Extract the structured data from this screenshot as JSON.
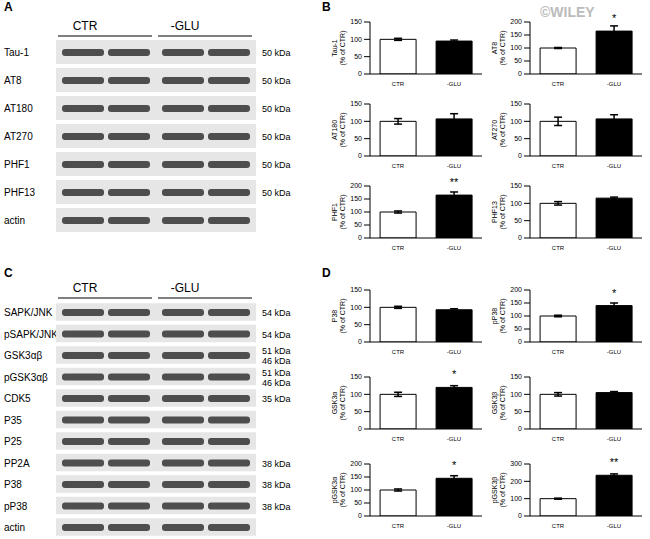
{
  "panel_labels": [
    "A",
    "B",
    "C",
    "D"
  ],
  "watermark": "©WILEY",
  "blots": [
    {
      "groups": [
        "CTR",
        "-GLU"
      ],
      "rows": [
        {
          "label": "Tau-1",
          "kda": [
            "50 kDa"
          ]
        },
        {
          "label": "AT8",
          "kda": [
            "50 kDa"
          ]
        },
        {
          "label": "AT180",
          "kda": [
            "50 kDa"
          ]
        },
        {
          "label": "AT270",
          "kda": [
            "50 kDa"
          ]
        },
        {
          "label": "PHF1",
          "kda": [
            "50 kDa"
          ]
        },
        {
          "label": "PHF13",
          "kda": [
            "50 kDa"
          ]
        },
        {
          "label": "actin",
          "kda": []
        }
      ]
    },
    {
      "groups": [
        "CTR",
        "-GLU"
      ],
      "rows": [
        {
          "label": "SAPK/JNK",
          "kda": [
            "54 kDa"
          ]
        },
        {
          "label": "pSAPK/JNK",
          "kda": [
            "54 kDa"
          ]
        },
        {
          "label": "GSK3αβ",
          "kda": [
            "51 kDa",
            "46 kDa"
          ]
        },
        {
          "label": "pGSK3αβ",
          "kda": [
            "51 kDa",
            "46 kDa"
          ]
        },
        {
          "label": "CDK5",
          "kda": [
            "35 kDa"
          ]
        },
        {
          "label": "P35",
          "kda": []
        },
        {
          "label": "P25",
          "kda": []
        },
        {
          "label": "PP2A",
          "kda": [
            "38 kDa"
          ]
        },
        {
          "label": "P38",
          "kda": [
            "38 kDa"
          ]
        },
        {
          "label": "pP38",
          "kda": [
            "38 kDa"
          ]
        },
        {
          "label": "actin",
          "kda": []
        }
      ]
    }
  ],
  "chart_data": [
    {
      "type": "bar",
      "ylabel": [
        "Tau-1",
        "(% of CTR)"
      ],
      "categories": [
        "CTR",
        "-GLU"
      ],
      "values": [
        100,
        95
      ],
      "errors": [
        3,
        3
      ],
      "significance": [
        null,
        null
      ],
      "colors": [
        "#ffffff",
        "#000000"
      ],
      "ylim": [
        0,
        150
      ],
      "yticks": [
        0,
        50,
        100,
        150
      ]
    },
    {
      "type": "bar",
      "ylabel": [
        "AT8",
        "(% of CTR)"
      ],
      "categories": [
        "CTR",
        "-GLU"
      ],
      "values": [
        100,
        165
      ],
      "errors": [
        2,
        20
      ],
      "significance": [
        null,
        "*"
      ],
      "colors": [
        "#ffffff",
        "#000000"
      ],
      "ylim": [
        0,
        200
      ],
      "yticks": [
        0,
        50,
        100,
        150,
        200
      ]
    },
    {
      "type": "bar",
      "ylabel": [
        "AT180",
        "(% of CTR)"
      ],
      "categories": [
        "CTR",
        "-GLU"
      ],
      "values": [
        100,
        107
      ],
      "errors": [
        8,
        15
      ],
      "significance": [
        null,
        null
      ],
      "colors": [
        "#ffffff",
        "#000000"
      ],
      "ylim": [
        0,
        150
      ],
      "yticks": [
        0,
        50,
        100,
        150
      ]
    },
    {
      "type": "bar",
      "ylabel": [
        "AT270",
        "(% of CTR)"
      ],
      "categories": [
        "CTR",
        "-GLU"
      ],
      "values": [
        100,
        107
      ],
      "errors": [
        12,
        12
      ],
      "significance": [
        null,
        null
      ],
      "colors": [
        "#ffffff",
        "#000000"
      ],
      "ylim": [
        0,
        150
      ],
      "yticks": [
        0,
        50,
        100,
        150
      ]
    },
    {
      "type": "bar",
      "ylabel": [
        "PHF1",
        "(% of CTR)"
      ],
      "categories": [
        "CTR",
        "-GLU"
      ],
      "values": [
        100,
        165
      ],
      "errors": [
        4,
        12
      ],
      "significance": [
        null,
        "**"
      ],
      "colors": [
        "#ffffff",
        "#000000"
      ],
      "ylim": [
        0,
        200
      ],
      "yticks": [
        0,
        50,
        100,
        150,
        200
      ]
    },
    {
      "type": "bar",
      "ylabel": [
        "PHF13",
        "(% of CTR)"
      ],
      "categories": [
        "CTR",
        "-GLU"
      ],
      "values": [
        100,
        115
      ],
      "errors": [
        5,
        3
      ],
      "significance": [
        null,
        null
      ],
      "colors": [
        "#ffffff",
        "#000000"
      ],
      "ylim": [
        0,
        150
      ],
      "yticks": [
        0,
        50,
        100,
        150
      ]
    },
    {
      "type": "bar",
      "ylabel": [
        "P38",
        "(% of CTR)"
      ],
      "categories": [
        "CTR",
        "-GLU"
      ],
      "values": [
        100,
        93
      ],
      "errors": [
        3,
        3
      ],
      "significance": [
        null,
        null
      ],
      "colors": [
        "#ffffff",
        "#000000"
      ],
      "ylim": [
        0,
        150
      ],
      "yticks": [
        0,
        50,
        100,
        150
      ]
    },
    {
      "type": "bar",
      "ylabel": [
        "pP38",
        "(% of CTR)"
      ],
      "categories": [
        "CTR",
        "-GLU"
      ],
      "values": [
        100,
        140
      ],
      "errors": [
        3,
        10
      ],
      "significance": [
        null,
        "*"
      ],
      "colors": [
        "#ffffff",
        "#000000"
      ],
      "ylim": [
        0,
        200
      ],
      "yticks": [
        0,
        50,
        100,
        150,
        200
      ]
    },
    {
      "type": "bar",
      "ylabel": [
        "GSK3α",
        "(% of CTR)"
      ],
      "categories": [
        "CTR",
        "-GLU"
      ],
      "values": [
        100,
        120
      ],
      "errors": [
        6,
        5
      ],
      "significance": [
        null,
        "*"
      ],
      "colors": [
        "#ffffff",
        "#000000"
      ],
      "ylim": [
        0,
        150
      ],
      "yticks": [
        0,
        50,
        100,
        150
      ]
    },
    {
      "type": "bar",
      "ylabel": [
        "GSK3β",
        "(% of CTR)"
      ],
      "categories": [
        "CTR",
        "-GLU"
      ],
      "values": [
        100,
        105
      ],
      "errors": [
        5,
        3
      ],
      "significance": [
        null,
        null
      ],
      "colors": [
        "#ffffff",
        "#000000"
      ],
      "ylim": [
        0,
        150
      ],
      "yticks": [
        0,
        50,
        100,
        150
      ]
    },
    {
      "type": "bar",
      "ylabel": [
        "pGSK3α",
        "(% of CTR)"
      ],
      "categories": [
        "CTR",
        "-GLU"
      ],
      "values": [
        100,
        145
      ],
      "errors": [
        4,
        10
      ],
      "significance": [
        null,
        "*"
      ],
      "colors": [
        "#ffffff",
        "#000000"
      ],
      "ylim": [
        0,
        200
      ],
      "yticks": [
        0,
        50,
        100,
        150,
        200
      ]
    },
    {
      "type": "bar",
      "ylabel": [
        "pGSK3β",
        "(% of CTR)"
      ],
      "categories": [
        "CTR",
        "-GLU"
      ],
      "values": [
        100,
        235
      ],
      "errors": [
        3,
        8
      ],
      "significance": [
        null,
        "**"
      ],
      "colors": [
        "#ffffff",
        "#000000"
      ],
      "ylim": [
        0,
        300
      ],
      "yticks": [
        0,
        100,
        200,
        300
      ]
    }
  ]
}
